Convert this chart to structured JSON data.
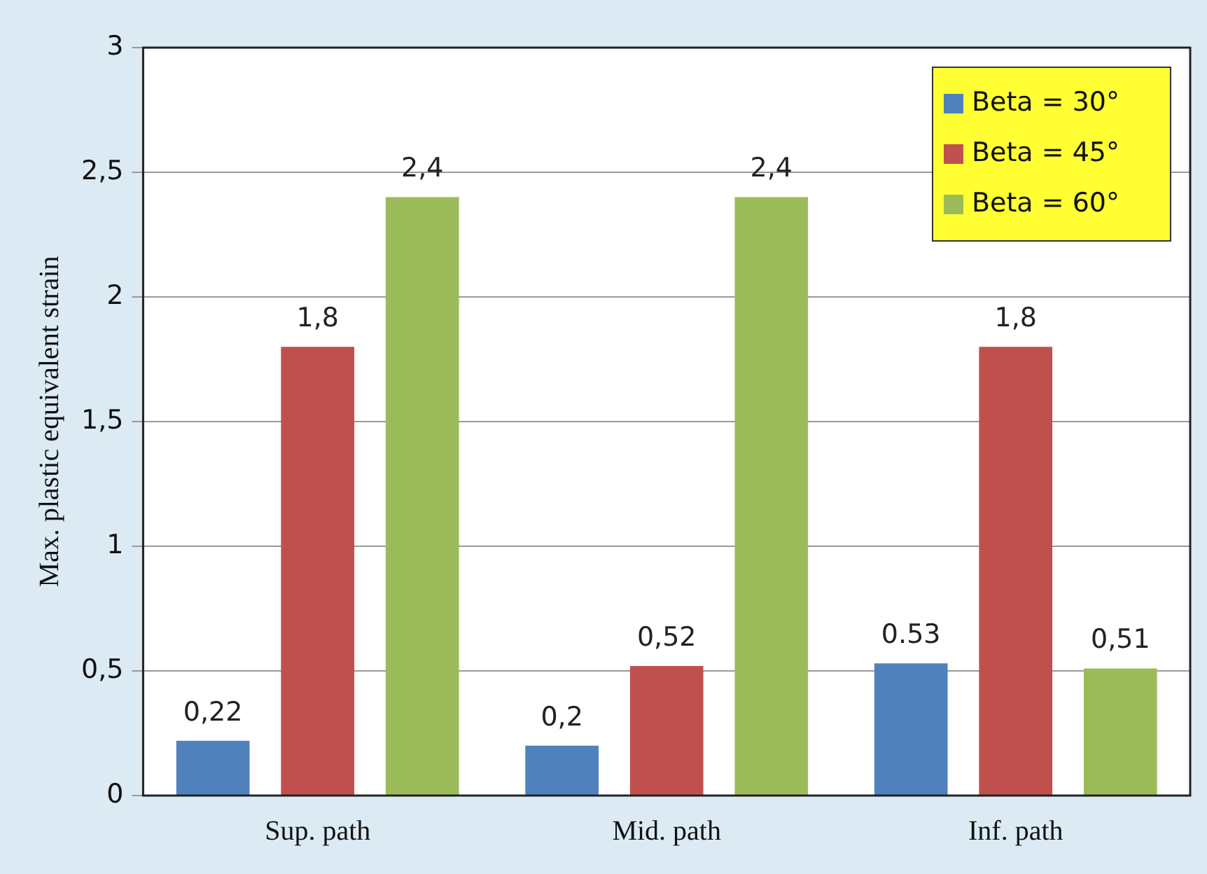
{
  "chart_data": {
    "type": "bar",
    "ylabel": "Max. plastic equivalent strain",
    "categories": [
      "Sup. path",
      "Mid. path",
      "Inf. path"
    ],
    "series": [
      {
        "name": "Beta = 30°",
        "color": "#4f81bd",
        "values": [
          0.22,
          0.2,
          0.53
        ],
        "value_labels": [
          "0,22",
          "0,2",
          "0.53"
        ]
      },
      {
        "name": "Beta = 45°",
        "color": "#c0504d",
        "values": [
          1.8,
          0.52,
          1.8
        ],
        "value_labels": [
          "1,8",
          "0,52",
          "1,8"
        ]
      },
      {
        "name": "Beta = 60°",
        "color": "#9bbb59",
        "values": [
          2.4,
          2.4,
          0.51
        ],
        "value_labels": [
          "2,4",
          "2,4",
          "0,51"
        ]
      }
    ],
    "ylim": [
      0,
      3
    ],
    "yticks": [
      0,
      {
        "value": 0.5,
        "label": "0,5"
      },
      1,
      {
        "value": 1.5,
        "label": "1,5"
      },
      2,
      {
        "value": 2.5,
        "label": "2,5"
      },
      3
    ],
    "grid": "y",
    "legend": "top right"
  }
}
